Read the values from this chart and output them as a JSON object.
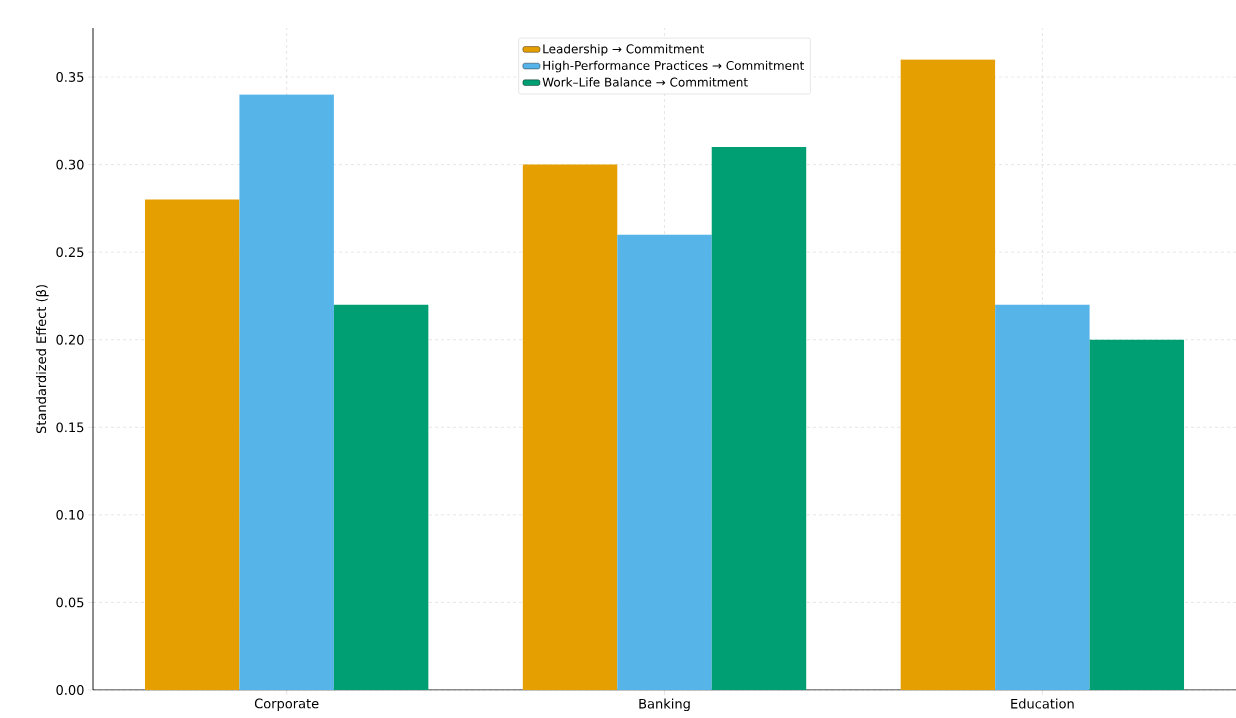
{
  "chart_data": {
    "type": "bar",
    "ylabel": "Standardized Effect (β)",
    "categories": [
      "Corporate",
      "Banking",
      "Education"
    ],
    "series": [
      {
        "name": "Leadership → Commitment",
        "color": "#e69f00",
        "values": [
          0.28,
          0.3,
          0.36
        ]
      },
      {
        "name": "High-Performance Practices → Commitment",
        "color": "#56b4e9",
        "values": [
          0.34,
          0.26,
          0.22
        ]
      },
      {
        "name": "Work–Life Balance → Commitment",
        "color": "#009e73",
        "values": [
          0.22,
          0.31,
          0.2
        ]
      }
    ],
    "ylim": [
      0,
      0.378
    ],
    "yticks": [
      {
        "value": 0,
        "label": "0.00"
      },
      {
        "value": 0.05,
        "label": "0.05"
      },
      {
        "value": 0.1,
        "label": "0.10"
      },
      {
        "value": 0.15,
        "label": "0.15"
      },
      {
        "value": 0.2,
        "label": "0.20"
      },
      {
        "value": 0.25,
        "label": "0.25"
      },
      {
        "value": 0.3,
        "label": "0.30"
      },
      {
        "value": 0.35,
        "label": "0.35"
      }
    ],
    "grid": true,
    "legend": "top"
  }
}
